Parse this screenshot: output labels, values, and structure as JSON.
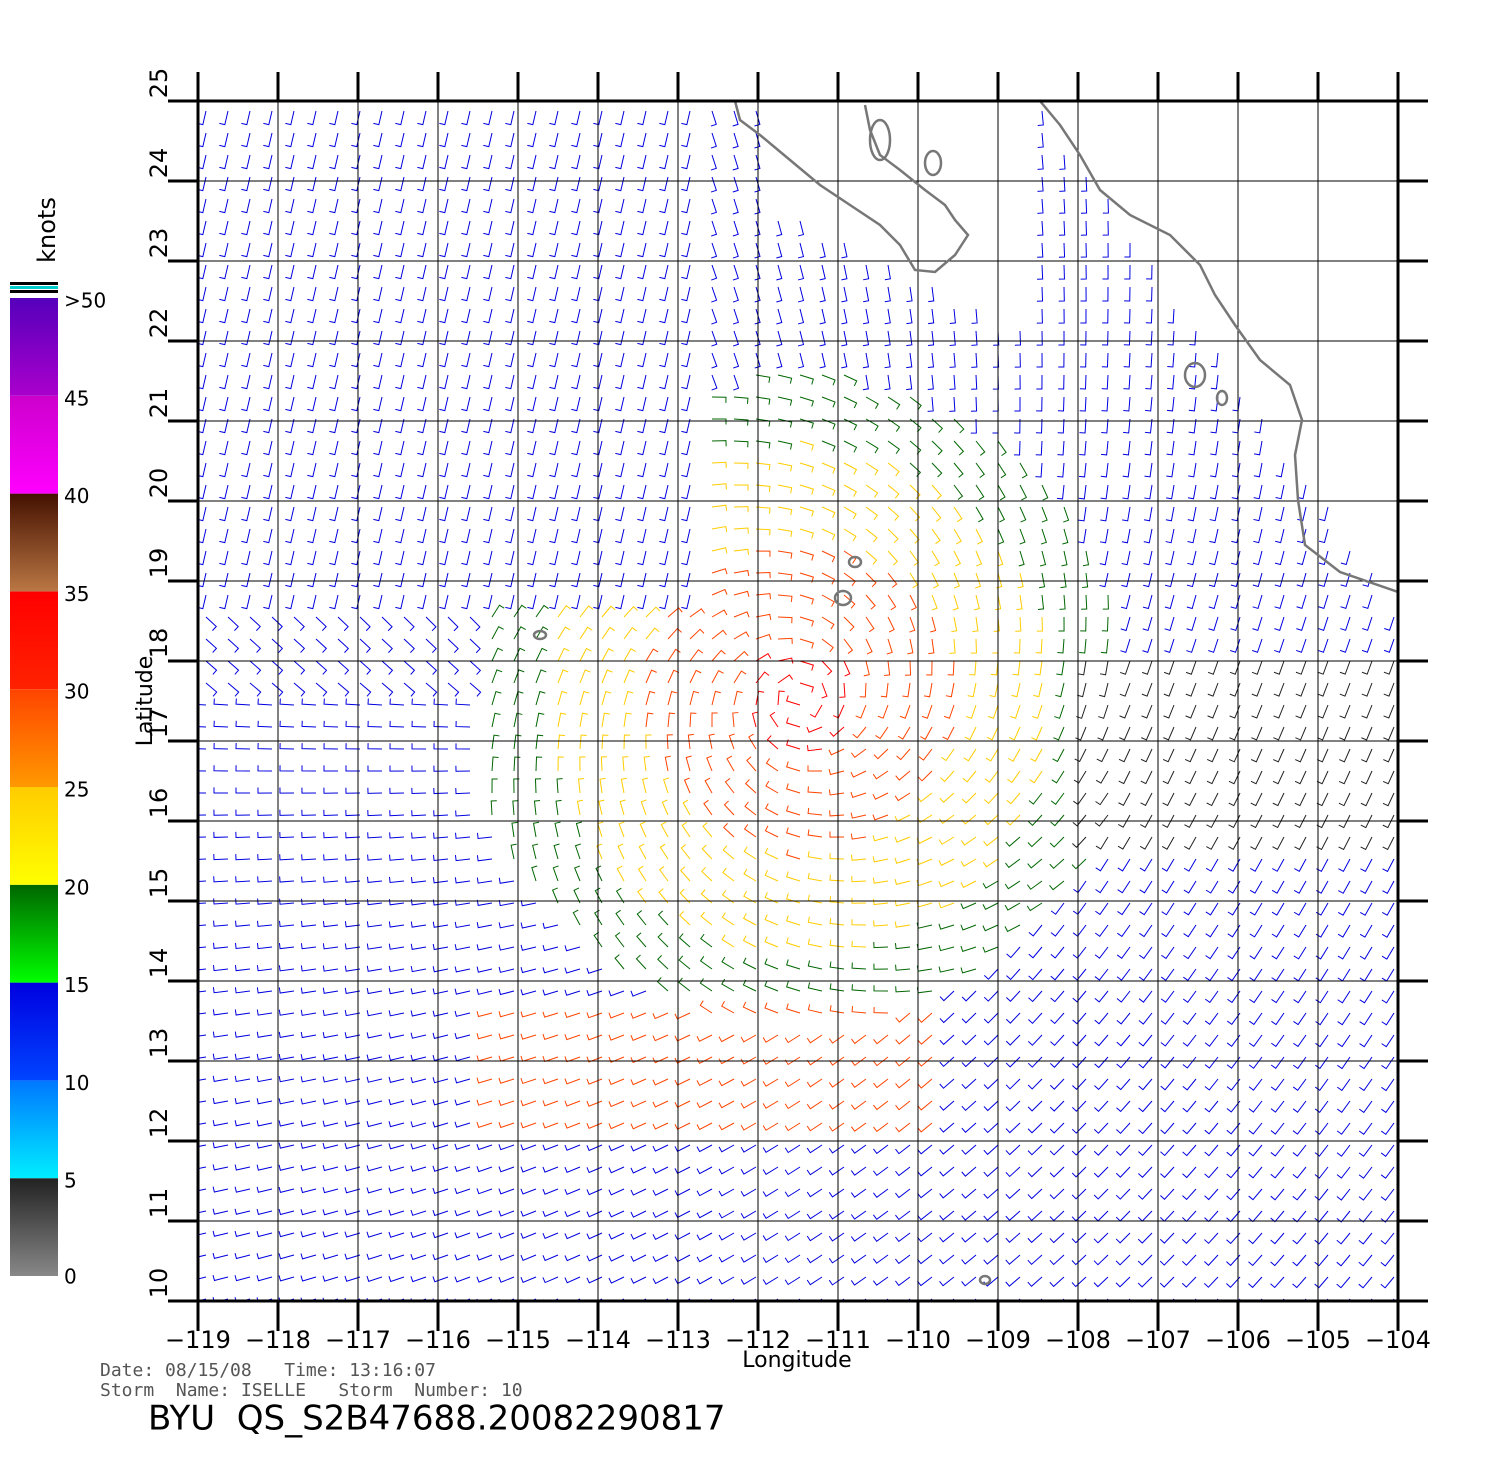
{
  "map": {
    "xlabel": "Longitude",
    "ylabel": "Latitude",
    "xlim": [
      -119,
      -104
    ],
    "ylim": [
      10,
      25
    ],
    "xticks": [
      {
        "value": -119,
        "label": "−119"
      },
      {
        "value": -118,
        "label": "−118"
      },
      {
        "value": -117,
        "label": "−117"
      },
      {
        "value": -116,
        "label": "−116"
      },
      {
        "value": -115,
        "label": "−115"
      },
      {
        "value": -114,
        "label": "−114"
      },
      {
        "value": -113,
        "label": "−113"
      },
      {
        "value": -112,
        "label": "−112"
      },
      {
        "value": -111,
        "label": "−111"
      },
      {
        "value": -110,
        "label": "−110"
      },
      {
        "value": -109,
        "label": "−109"
      },
      {
        "value": -108,
        "label": "−108"
      },
      {
        "value": -107,
        "label": "−107"
      },
      {
        "value": -106,
        "label": "−106"
      },
      {
        "value": -105,
        "label": "−105"
      },
      {
        "value": -104,
        "label": "−104"
      }
    ],
    "yticks": [
      10,
      11,
      12,
      13,
      14,
      15,
      16,
      17,
      18,
      19,
      20,
      21,
      22,
      23,
      24,
      25
    ],
    "grid": true
  },
  "colorbar": {
    "title": "knots",
    "lim": [
      0,
      50
    ],
    "ticks": [
      0,
      5,
      10,
      15,
      20,
      25,
      30,
      35,
      40,
      45,
      {
        "value": 50,
        "label": ">50"
      }
    ],
    "colors": [
      [
        "#888888",
        "#222222"
      ],
      [
        "#00eeff",
        "#0077ff"
      ],
      [
        "#0044ff",
        "#0000e0"
      ],
      [
        "#00ff00",
        "#006600"
      ],
      [
        "#ffff00",
        "#ffcc00"
      ],
      [
        "#ff9900",
        "#ff4400"
      ],
      [
        "#ff2200",
        "#ff0000"
      ],
      [
        "#bb7744",
        "#441100"
      ],
      [
        "#ff00ff",
        "#cc00cc"
      ],
      [
        "#aa00cc",
        "#5500bb"
      ]
    ]
  },
  "footer": {
    "line1": "Date: 08/15/08   Time: 13:16:07",
    "line2": "Storm  Name: ISELLE   Storm  Number: 10",
    "title": "BYU  QS_S2B47688.20082290817"
  }
}
